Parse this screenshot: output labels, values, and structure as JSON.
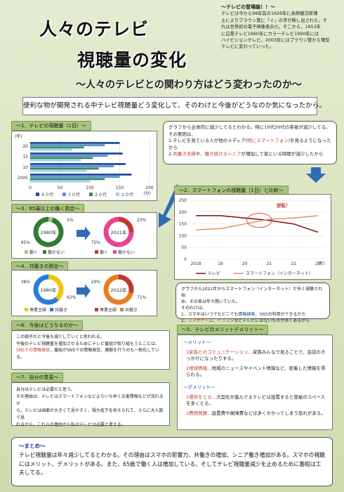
{
  "title": {
    "line1": "人々のテレビ",
    "line2": "視聴量の変化",
    "subtitle": "～人々のテレビとの関わり方はどう変わったのか～"
  },
  "history": {
    "heading": "～テレビの登場論！！～",
    "lines": [
      "テレビは今から98年前の1926年に高柳健次郎博",
      "士によりブラウン管に「イ」の字が映し出された。そ",
      "れは世界初の電子映像表示だ。そこから、1953年",
      "に白黒テレビ1960年にカラーテレビ1990年には",
      "ハイビジョンテレビ、2003年にはブラウン管から薄型",
      "テレビに変わっていった。"
    ]
  },
  "intro": "便利な物が開発される中テレビ視聴量どう変化して、そのわけと今後がどうなのか気になったから。",
  "section1": {
    "heading": "～1．テレビの視聴量（1日）～",
    "chart_data": {
      "type": "bar",
      "orientation": "horizontal",
      "ylabel": "(年)",
      "xlabel": "(分)",
      "categories": [
        "20",
        "15",
        "10",
        "2005"
      ],
      "xticks": [
        "0",
        "50",
        "100",
        "150",
        "200"
      ],
      "xlim": [
        0,
        200
      ],
      "series": [
        {
          "name": "４０代",
          "color": "#1f4e9c",
          "values": [
            150,
            155,
            160,
            170
          ]
        },
        {
          "name": "３０代",
          "color": "#5b8fd3",
          "values": [
            125,
            130,
            140,
            150
          ]
        },
        {
          "name": "２０代",
          "color": "#2e8b57",
          "values": [
            90,
            105,
            115,
            125
          ]
        },
        {
          "name": "１０代",
          "color": "#9ccff0",
          "values": [
            70,
            85,
            95,
            100
          ]
        }
      ]
    }
  },
  "note1": {
    "lines": [
      {
        "parts": [
          {
            "t": "グラフから全体的に減少してるとわかる。特に10代20代の若者が減少してる。",
            "c": ""
          }
        ]
      },
      {
        "parts": [
          {
            "t": "その要因は、",
            "c": ""
          }
        ]
      },
      {
        "parts": [
          {
            "t": "1.テレビを見ている人が他のメディア(",
            "c": ""
          },
          {
            "t": "特にスマートフォン",
            "c": "red"
          },
          {
            "t": ")を見るようになったから",
            "c": ""
          }
        ]
      },
      {
        "parts": [
          {
            "t": "2.",
            "c": ""
          },
          {
            "t": "共働き夫婦",
            "c": "red"
          },
          {
            "t": "や、",
            "c": ""
          },
          {
            "t": "働き続けるシニア",
            "c": "red"
          },
          {
            "t": "が増加して家にいる時間が減少したから",
            "c": ""
          }
        ]
      }
    ]
  },
  "section2": {
    "heading": "～2．スマートフォンの視聴量（1日）と比較～",
    "annotation": "逆転！",
    "chart_data": {
      "type": "line",
      "x": [
        "2018",
        "19",
        "20",
        "21",
        "22",
        "23"
      ],
      "xlabel": "(年)",
      "yticks": [
        "0",
        "50",
        "100",
        "150",
        "200",
        "250"
      ],
      "ylim": [
        0,
        250
      ],
      "series": [
        {
          "name": "テレビ",
          "color": "#8b1a1a",
          "values": [
            185,
            185,
            175,
            165,
            150,
            115
          ]
        },
        {
          "name": "スマートフォン（インターネット）",
          "color": "#e59866",
          "values": [
            125,
            130,
            150,
            170,
            175,
            185
          ]
        }
      ]
    }
  },
  "section3": {
    "heading": "～3．65歳以上の働く割合～",
    "charts": [
      {
        "year": "1980年",
        "work_pct": "5%",
        "notwork_pct": "95%",
        "work": 5,
        "notwork": 95
      },
      {
        "year": "2021年",
        "work_pct": "25%",
        "notwork_pct": "75%",
        "work": 25,
        "notwork": 75
      }
    ],
    "legend": [
      "働く",
      "働かない"
    ],
    "colors": {
      "work": "#a9c47c",
      "notwork": "#2e7d32",
      "work2": "#c0392b",
      "notwork2": "#e84393"
    }
  },
  "section4": {
    "heading": "～4．共働きの割合～",
    "charts": [
      {
        "year": "1980年",
        "a_pct": "38%",
        "b_pct": "62%",
        "a": 38,
        "b": 62
      },
      {
        "year": "2022年",
        "a_pct": "29%",
        "b_pct": "71%",
        "a": 29,
        "b": 71
      }
    ],
    "legend": [
      "専業主婦",
      "共働き"
    ],
    "colors": {
      "a1": "#f1c40f",
      "b1": "#2c7bd9",
      "a2": "#c0392b",
      "b2": "#e67e22"
    }
  },
  "note2": {
    "lines": [
      {
        "parts": [
          {
            "t": "グラフから2021年からスマートフォン（インターネット）が多く視聴され始",
            "c": ""
          }
        ]
      },
      {
        "parts": [
          {
            "t": "め、その差は年々開いていた。",
            "c": ""
          }
        ]
      },
      {
        "parts": [
          {
            "t": "そのわけは、",
            "c": ""
          }
        ]
      },
      {
        "parts": [
          {
            "t": "1．スマホはいつでもどこでも",
            "c": ""
          },
          {
            "t": "情報検索、SNS",
            "c": "blue"
          },
          {
            "t": "の利用ができるから",
            "c": ""
          }
        ]
      },
      {
        "parts": [
          {
            "t": "2．",
            "c": ""
          },
          {
            "t": "スマホゲーム、インスタ",
            "c": "red"
          },
          {
            "t": "などテレビにはないものが多くあるから",
            "c": ""
          }
        ]
      }
    ]
  },
  "section6": {
    "heading": "～6．今後はどうなるのか～",
    "lines": [
      {
        "parts": [
          {
            "t": "この調子だと今後も減少していくと思われる。",
            "c": ""
          }
        ]
      },
      {
        "parts": [
          {
            "t": "今後のテレビ視聴量を増加させるためにテレビ番組が取り組もうとことは、",
            "c": ""
          }
        ]
      },
      {
        "parts": [
          {
            "t": "SNSでの情報発信",
            "c": "red"
          },
          {
            "t": "…番組がSNSでの情報発信、連動を行うのも一般化している。",
            "c": ""
          }
        ]
      }
    ]
  },
  "section5": {
    "heading": "～5．テレビのメリットデメリット～",
    "merit_head": "～メリット～",
    "merits": [
      {
        "k": "1家族とのコミュニケーション",
        "v": "…家族みんなで見ることで、会話のきっかけになったりする。"
      },
      {
        "k": "2地域情報",
        "v": "…地域のニュースやイベント情報など、密着した情報を得られる。"
      }
    ],
    "demerit_head": "～デメリット～",
    "demerits": [
      {
        "k": "1場所をとる",
        "v": "…大型化が進んでるテレビは設置すると部屋のスペースを多くとる。"
      },
      {
        "k": "2費用問題",
        "v": "…設置費や故障費などは多くかかってしまう恐れがある。"
      }
    ]
  },
  "section7": {
    "heading": "～7．自分の意見～",
    "lines": [
      "自分はテレビは必要だと思う。",
      "その理由は、テレビはスマートフォンなどよりいち早く災害情報などが流れるか",
      "ら。テレビは画面が大きくて見やすく、視力低下を抑えられて、さらに大人数で見",
      "れるから。これらの理由から私はテレビは必要と考える。"
    ]
  },
  "summary": {
    "heading": "～まとめ～",
    "body": "テレビ視聴量は年々減少してるとわかる。その理由はスマホの影響力、共働きの増加、シニア働き増加がある。スマホの視聴にはメリット、デメリットがある。また、65歳で働く人は増加している。そしてテレビ視聴量減少を止めるために番組は工夫してる。"
  }
}
